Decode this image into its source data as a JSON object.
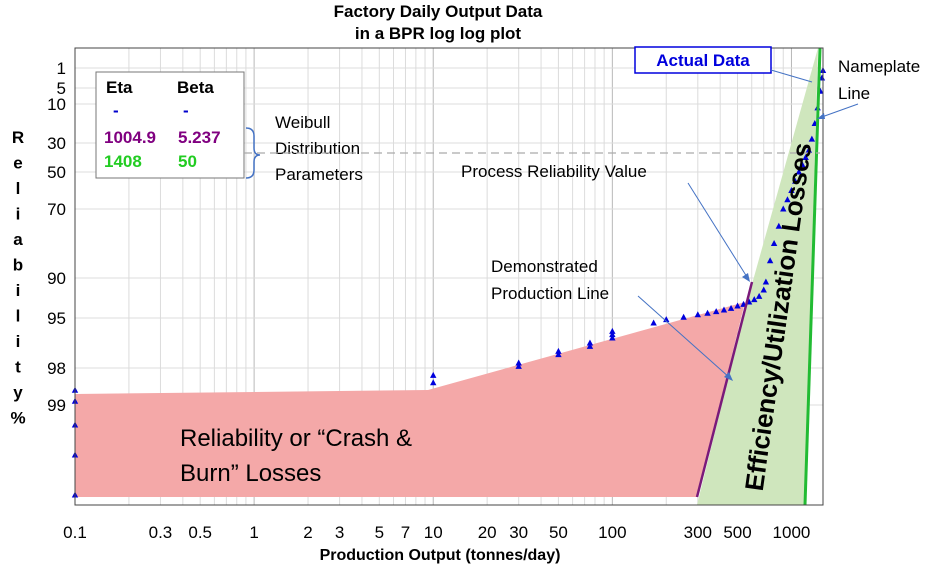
{
  "chart_data": {
    "type": "scatter",
    "title": "Factory Daily Output Data",
    "subtitle": "in a BPR log log plot",
    "xlabel": "Production Output (tonnes/day)",
    "ylabel": "Reliability %",
    "x_scale": "log",
    "xlim": [
      0.1,
      1500
    ],
    "y_scale": "weibull",
    "x_ticks": [
      "0.1",
      "0.3",
      "0.5",
      "1",
      "2",
      "3",
      "5",
      "7",
      "10",
      "20",
      "30",
      "50",
      "100",
      "300",
      "500",
      "1000"
    ],
    "y_ticks": [
      "1",
      "5",
      "10",
      "30",
      "50",
      "70",
      "90",
      "95",
      "98",
      "99"
    ],
    "grid": true,
    "series": [
      {
        "name": "Actual Data",
        "color": "#0000dd",
        "marker": "triangle",
        "points": [
          [
            0.1,
            99.9
          ],
          [
            0.1,
            99.5
          ],
          [
            0.1,
            99.2
          ],
          [
            0.1,
            98.9
          ],
          [
            0.1,
            98.6
          ],
          [
            10,
            98.4
          ],
          [
            10,
            98.2
          ],
          [
            30,
            97.9
          ],
          [
            30,
            97.7
          ],
          [
            50,
            97.2
          ],
          [
            50,
            97.0
          ],
          [
            75,
            96.7
          ],
          [
            75,
            96.5
          ],
          [
            100,
            96.2
          ],
          [
            100,
            96.0
          ],
          [
            100,
            95.8
          ],
          [
            170,
            95.3
          ],
          [
            200,
            95.1
          ],
          [
            250,
            94.9
          ],
          [
            300,
            94.6
          ],
          [
            340,
            94.4
          ],
          [
            380,
            94.2
          ],
          [
            420,
            94.0
          ],
          [
            460,
            93.8
          ],
          [
            500,
            93.5
          ],
          [
            540,
            93.3
          ],
          [
            580,
            93.0
          ],
          [
            620,
            92.7
          ],
          [
            660,
            92.3
          ],
          [
            700,
            91.5
          ],
          [
            720,
            90.5
          ],
          [
            760,
            85
          ],
          [
            800,
            80
          ],
          [
            850,
            75
          ],
          [
            900,
            70
          ],
          [
            950,
            65
          ],
          [
            1000,
            60
          ],
          [
            1050,
            55
          ],
          [
            1100,
            50
          ],
          [
            1150,
            45
          ],
          [
            1200,
            40
          ],
          [
            1250,
            35
          ],
          [
            1300,
            28
          ],
          [
            1350,
            20
          ],
          [
            1400,
            12
          ],
          [
            1450,
            6
          ],
          [
            1480,
            3
          ],
          [
            1500,
            1.5
          ]
        ]
      }
    ],
    "weibull_parameters": {
      "headers": [
        "Eta",
        "Beta"
      ],
      "rows": [
        {
          "eta": "-",
          "beta": "-",
          "color": "#0000cc"
        },
        {
          "eta": "1004.9",
          "beta": "5.237",
          "color": "#800080"
        },
        {
          "eta": "1408",
          "beta": "50",
          "color": "#22cc22"
        }
      ],
      "label": [
        "Weibull",
        "Distribution",
        "Parameters"
      ]
    },
    "annotations": {
      "actual_data": "Actual Data",
      "nameplate": [
        "Nameplate",
        "Line"
      ],
      "process_reliability": "Process Reliability Value",
      "demonstrated": [
        "Demonstrated",
        "Production Line"
      ],
      "efficiency": "Efficiency/Utilization Losses",
      "crash": [
        "Reliability or “Crash &",
        "Burn” Losses"
      ]
    },
    "colors": {
      "data": "#0000dd",
      "demonstrated_line": "#7a1a7a",
      "nameplate_line": "#22bb33",
      "reliability_losses": "#f4a8a8",
      "efficiency_losses": "#cfe6bd"
    }
  }
}
